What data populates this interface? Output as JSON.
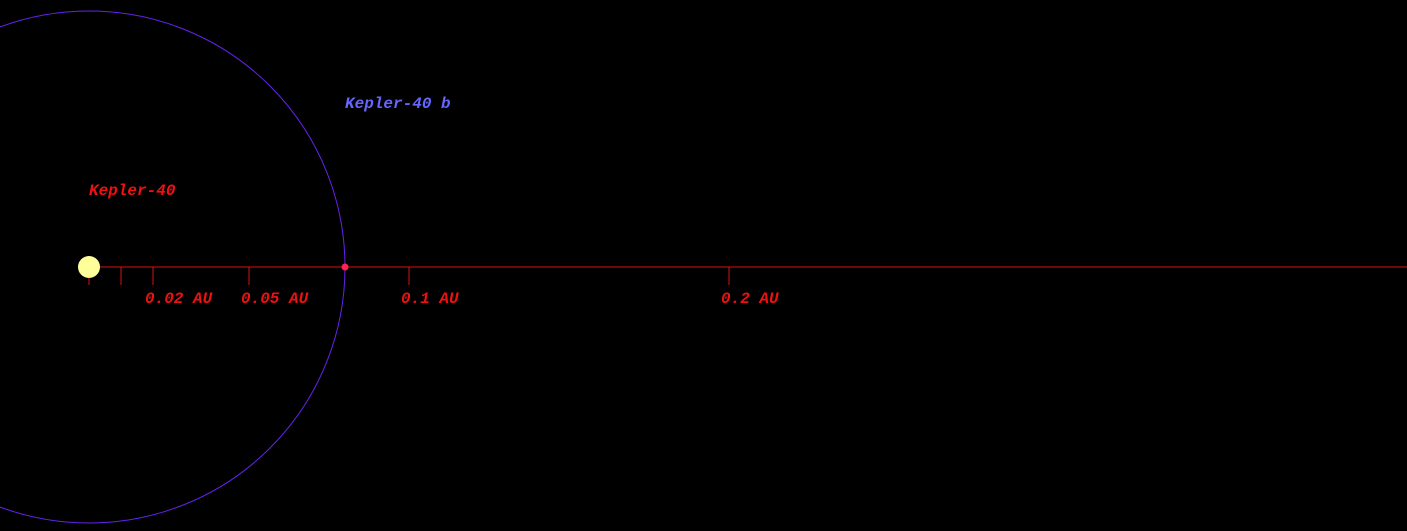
{
  "star": {
    "name": "Kepler-40"
  },
  "planet": {
    "name": "Kepler-40 b",
    "orbit_au": 0.08
  },
  "scale": {
    "ticks": [
      {
        "value": 0
      },
      {
        "value": 0.01
      },
      {
        "value": 0.02,
        "label": "0.02 AU"
      },
      {
        "value": 0.05,
        "label": "0.05 AU"
      },
      {
        "value": 0.1,
        "label": "0.1 AU"
      },
      {
        "value": 0.2,
        "label": "0.2 AU"
      }
    ]
  }
}
